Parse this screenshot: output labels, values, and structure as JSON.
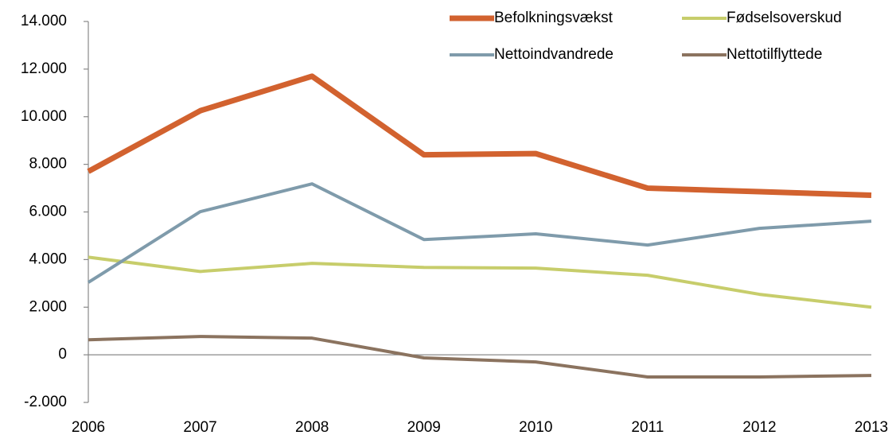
{
  "chart_data": {
    "type": "line",
    "categories": [
      "2006",
      "2007",
      "2008",
      "2009",
      "2010",
      "2011",
      "2012",
      "2013"
    ],
    "series": [
      {
        "name": "Befolkningsvækst",
        "color": "#d2622f",
        "values": [
          7700,
          10250,
          11700,
          8400,
          8450,
          7000,
          6850,
          6700
        ]
      },
      {
        "name": "Fødselsoverskud",
        "color": "#c7cd6b",
        "values": [
          4100,
          3500,
          3840,
          3670,
          3640,
          3340,
          2540,
          2000
        ]
      },
      {
        "name": "Nettoindvandrede",
        "color": "#7f9bab",
        "values": [
          3040,
          6010,
          7180,
          4840,
          5080,
          4610,
          5310,
          5610
        ]
      },
      {
        "name": "Nettotilflyttede",
        "color": "#8b735f",
        "values": [
          630,
          770,
          700,
          -130,
          -300,
          -930,
          -930,
          -870
        ]
      }
    ],
    "ylim": [
      -2000,
      14000
    ],
    "yticks": [
      {
        "value": -2000,
        "label": "-2.000"
      },
      0,
      {
        "value": 2000,
        "label": "2.000"
      },
      {
        "value": 4000,
        "label": "4.000"
      },
      {
        "value": 6000,
        "label": "6.000"
      },
      {
        "value": 8000,
        "label": "8.000"
      },
      {
        "value": 10000,
        "label": "10.000"
      },
      {
        "value": 12000,
        "label": "12.000"
      },
      {
        "value": 14000,
        "label": "14.000"
      }
    ],
    "grid": false,
    "legend": "top-right"
  }
}
